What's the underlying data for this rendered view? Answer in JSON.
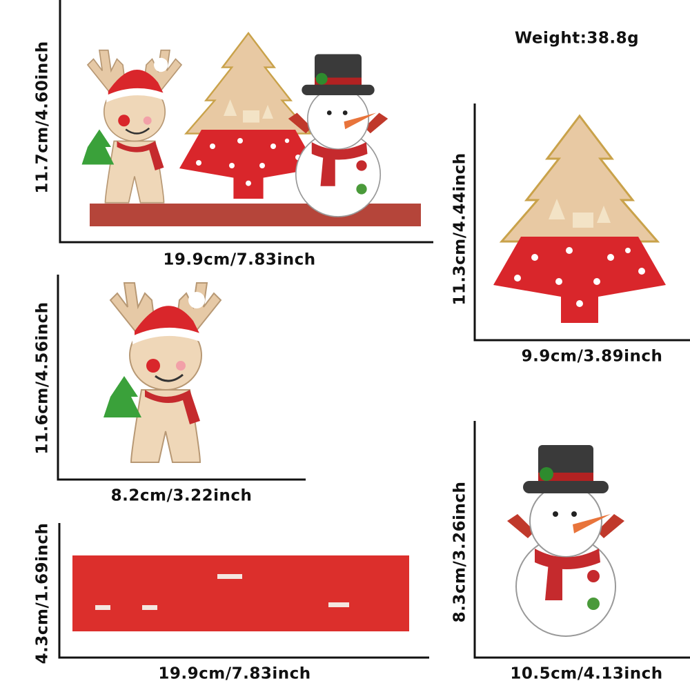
{
  "weight": "Weight:38.8g",
  "panels": [
    {
      "height": "11.7cm/4.60inch",
      "width": "19.9cm/7.83inch"
    },
    {
      "height": "11.3cm/4.44inch",
      "width": "9.9cm/3.89inch"
    },
    {
      "height": "11.6cm/4.56inch",
      "width": "8.2cm/3.22inch"
    },
    {
      "height": "4.3cm/1.69inch",
      "width": "19.9cm/7.83inch"
    },
    {
      "height": "8.3cm/3.26inch",
      "width": "10.5cm/4.13inch"
    }
  ]
}
